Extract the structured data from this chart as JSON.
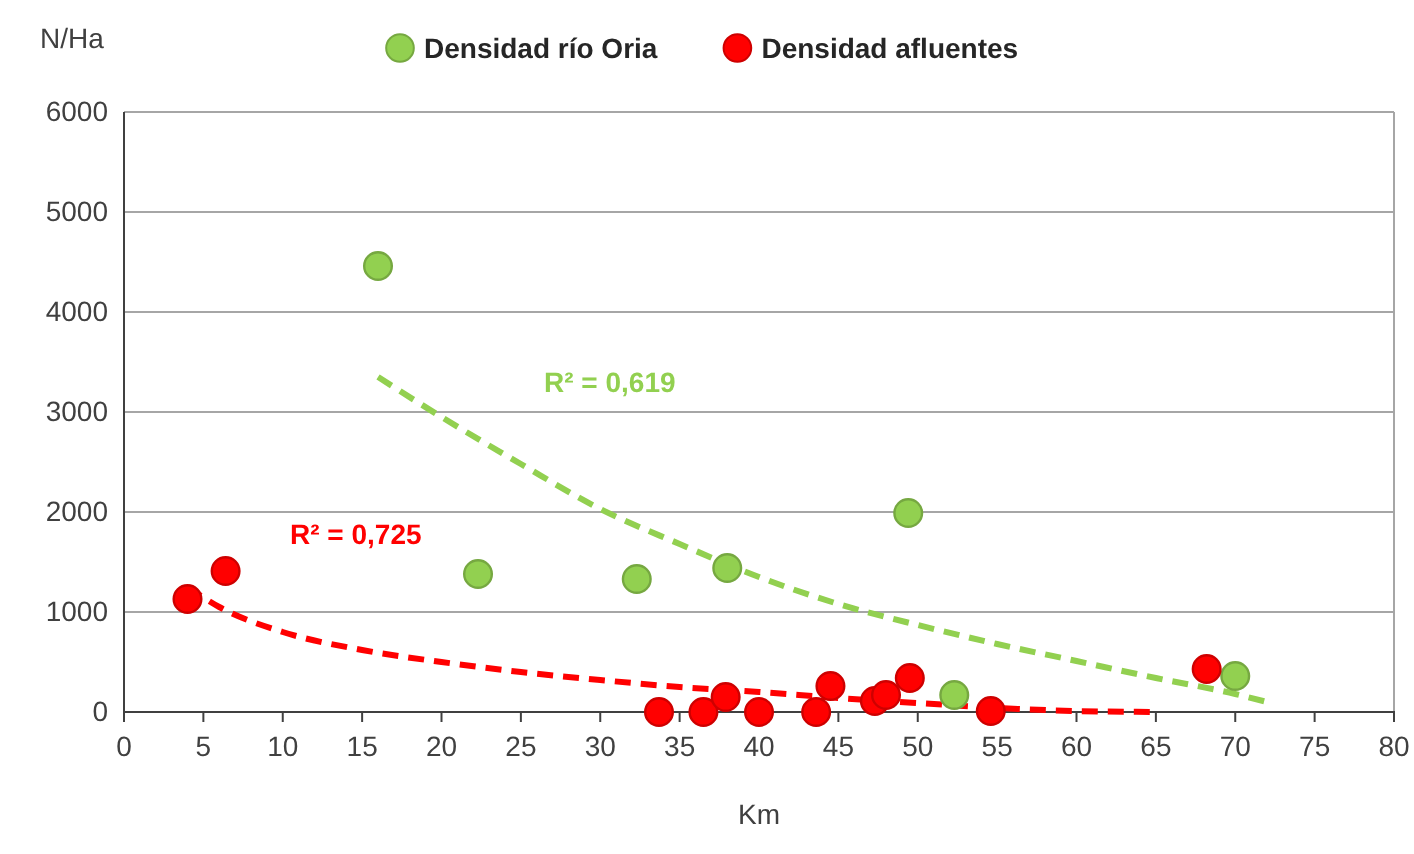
{
  "chart_data": {
    "type": "scatter",
    "xlabel": "Km",
    "ylabel": "N/Ha",
    "xlim": [
      0,
      80
    ],
    "xticks": [
      0,
      5,
      10,
      15,
      20,
      25,
      30,
      35,
      40,
      45,
      50,
      55,
      60,
      65,
      70,
      75,
      80
    ],
    "ylim": [
      0,
      6000
    ],
    "yticks": [
      0,
      1000,
      2000,
      3000,
      4000,
      5000,
      6000
    ],
    "grid": "y",
    "legend": "top",
    "marker": "circle",
    "series": [
      {
        "name": "Densidad río Oria",
        "color": "#92d050",
        "x": [
          16,
          22.3,
          32.3,
          38,
          49.4,
          52.3,
          70
        ],
        "values": [
          4460,
          1380,
          1330,
          1440,
          1990,
          170,
          360
        ]
      },
      {
        "name": "Densidad afluentes",
        "color": "#ff0000",
        "x": [
          4,
          6.4,
          33.7,
          36.5,
          37.9,
          40,
          43.6,
          44.5,
          47.3,
          48,
          49.5,
          54.6,
          68.2
        ],
        "values": [
          1130,
          1410,
          0,
          0,
          150,
          0,
          0,
          260,
          110,
          170,
          340,
          10,
          430
        ]
      },
      {
        "type": "line",
        "color": "#92d050",
        "line_style": "dashed",
        "marker": "none",
        "x": [
          16,
          20,
          25,
          30,
          35,
          40,
          45,
          50,
          55,
          60,
          65,
          70,
          72
        ],
        "values": [
          3350,
          2950,
          2480,
          2030,
          1680,
          1350,
          1080,
          870,
          680,
          510,
          340,
          180,
          100
        ]
      },
      {
        "type": "line",
        "color": "#ff0000",
        "line_style": "dashed",
        "marker": "none",
        "x": [
          4,
          6,
          10,
          15,
          20,
          25,
          30,
          35,
          40,
          45,
          50,
          55,
          60,
          65
        ],
        "values": [
          1250,
          1050,
          800,
          620,
          500,
          400,
          320,
          250,
          200,
          140,
          90,
          40,
          10,
          0
        ]
      }
    ],
    "annotations": [
      "R² = 0,619",
      "R² = 0,725"
    ]
  }
}
